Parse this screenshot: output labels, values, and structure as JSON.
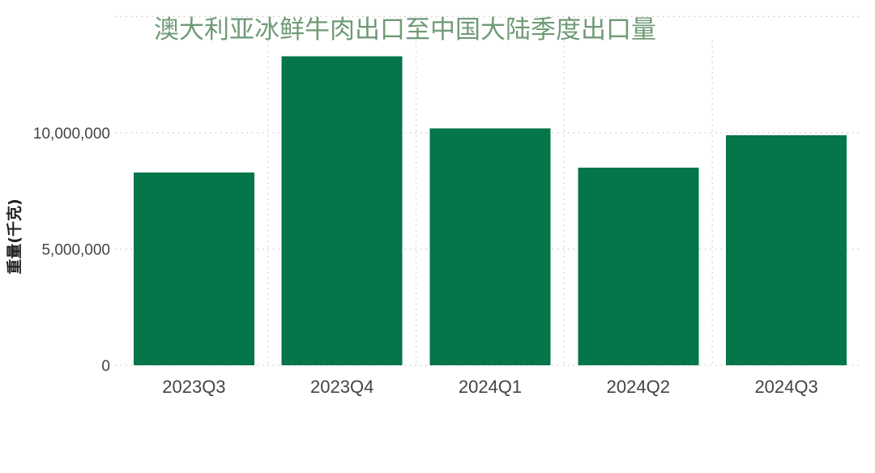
{
  "chart_data": {
    "type": "bar",
    "title": "澳大利亚冰鲜牛肉出口至中国大陆季度出口量",
    "xlabel": "",
    "ylabel": "重量(千克)",
    "categories": [
      "2023Q3",
      "2023Q4",
      "2024Q1",
      "2024Q2",
      "2024Q3"
    ],
    "values": [
      8300000,
      13300000,
      10200000,
      8500000,
      9900000
    ],
    "ylim": [
      0,
      13500000
    ],
    "yticks": [
      {
        "value": 0,
        "label": "0"
      },
      {
        "value": 5000000,
        "label": "5,000,000"
      },
      {
        "value": 10000000,
        "label": "10,000,000"
      }
    ],
    "grid": true,
    "colors": {
      "bar": "#05754a",
      "title": "#6f9a76",
      "grid": "#c8c8c8"
    }
  }
}
